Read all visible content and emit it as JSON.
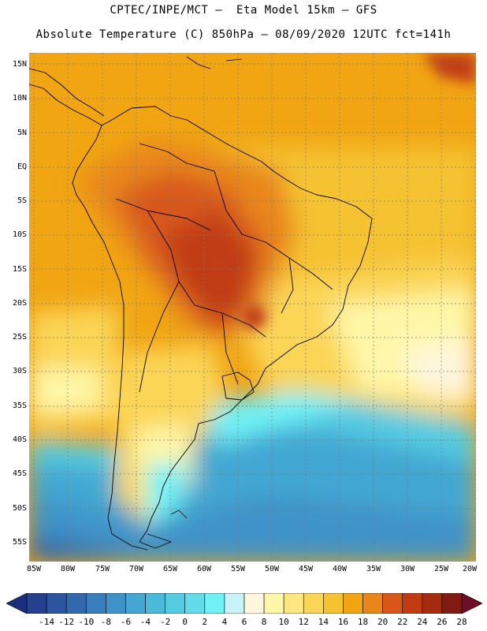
{
  "header": {
    "title_line1": "CPTEC/INPE/MCT –  Eta Model 15km – GFS",
    "title_line2": "Absolute Temperature (C) 850hPa – 08/09/2020 12UTC fct=141h"
  },
  "axes": {
    "lat_labels": [
      "15N",
      "10N",
      "5N",
      "EQ",
      "5S",
      "10S",
      "15S",
      "20S",
      "25S",
      "30S",
      "35S",
      "40S",
      "45S",
      "50S",
      "55S"
    ],
    "lon_labels": [
      "85W",
      "80W",
      "75W",
      "70W",
      "65W",
      "60W",
      "55W",
      "50W",
      "45W",
      "40W",
      "35W",
      "30W",
      "25W",
      "20W"
    ]
  },
  "colorbar": {
    "labels": [
      "-14",
      "-12",
      "-10",
      "-8",
      "-6",
      "-4",
      "-2",
      "0",
      "2",
      "4",
      "6",
      "8",
      "10",
      "12",
      "14",
      "16",
      "18",
      "20",
      "22",
      "24",
      "26",
      "28"
    ],
    "under_color": "#1a2e7e",
    "over_color": "#6e0f2a",
    "colors": [
      "#24408e",
      "#2b55a0",
      "#3168ae",
      "#3a7fbc",
      "#3f93c8",
      "#43a7d2",
      "#4bbad9",
      "#55cbe2",
      "#63dbe9",
      "#6ff1f6",
      "#c9f3fb",
      "#fff6dd",
      "#fff7a8",
      "#ffe680",
      "#fbd556",
      "#f5c232",
      "#f1a513",
      "#e8861b",
      "#d8581a",
      "#c13c13",
      "#a32c10",
      "#811b12"
    ]
  }
}
